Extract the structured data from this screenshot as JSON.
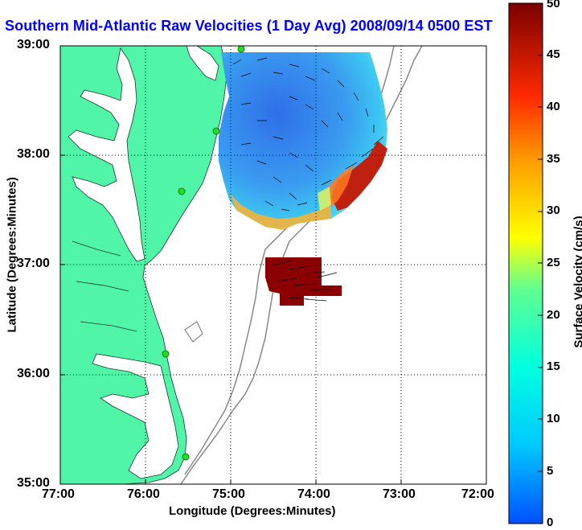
{
  "map": {
    "title": "Southern Mid-Atlantic Raw Velocities (1 Day Avg) 2008/09/14 0500 EST",
    "x_axis_label": "Longitude (Degrees:Minutes)",
    "y_axis_label": "Latitude (Degrees:Minutes)",
    "x_ticks": [
      "77:00",
      "76:00",
      "75:00",
      "74:00",
      "73:00",
      "72:00"
    ],
    "y_ticks": [
      "39:00",
      "38:00",
      "37:00",
      "36:00",
      "35:00"
    ],
    "lon_range": [
      -77,
      -72
    ],
    "lat_range": [
      35,
      39
    ],
    "grid": true,
    "colors": {
      "land": "#50f5a8",
      "water": "#ffffff",
      "station": "#22dd22",
      "title": "#0000ff"
    }
  },
  "colorbar": {
    "label": "Surface Velocity (cm/s)",
    "ticks": [
      "0",
      "5",
      "10",
      "15",
      "20",
      "25",
      "30",
      "35",
      "40",
      "45",
      "50"
    ],
    "range": [
      0,
      50
    ]
  }
}
